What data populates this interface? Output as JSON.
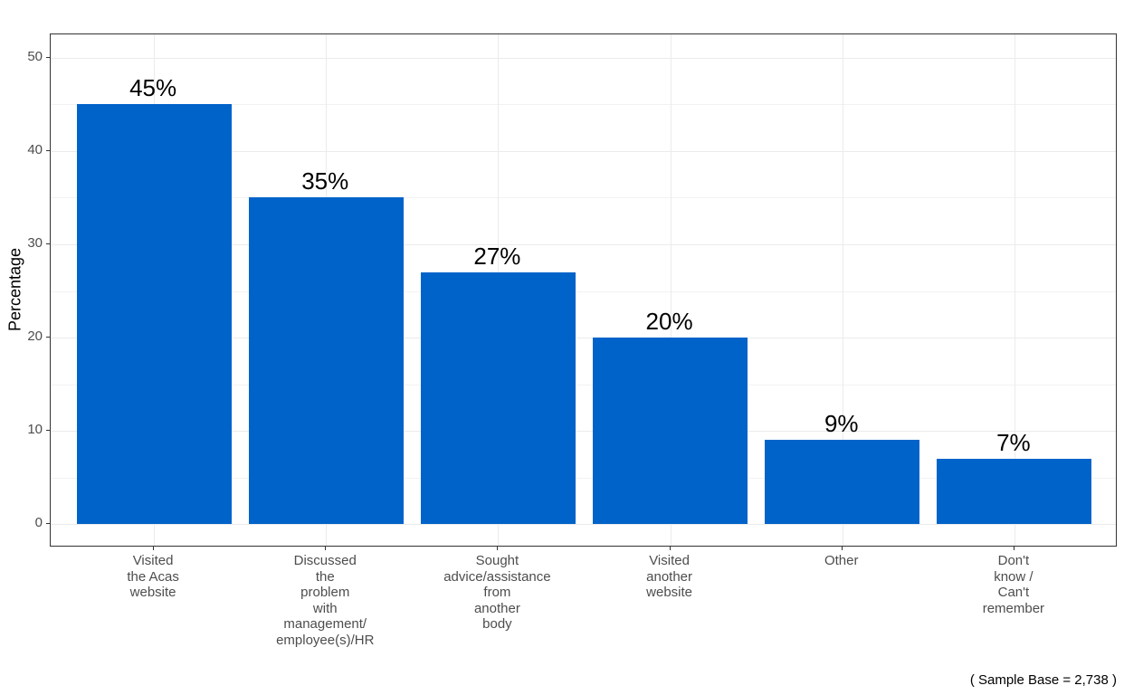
{
  "chart_data": {
    "type": "bar",
    "title": "",
    "xlabel": "",
    "ylabel": "Percentage",
    "ylim": [
      -2.5,
      52.5
    ],
    "yticks": [
      0,
      10,
      20,
      30,
      40,
      50
    ],
    "grid": true,
    "legend": null,
    "bar_color": "#0063C9",
    "categories": [
      "Visited\nthe Acas\nwebsite",
      "Discussed\nthe\nproblem\nwith\nmanagement/\nemployee(s)/HR",
      "Sought\nadvice/assistance\nfrom\nanother\nbody",
      "Visited\nanother\nwebsite",
      "Other",
      "Don't\nknow /\nCan't\nremember"
    ],
    "values": [
      45,
      35,
      27,
      20,
      9,
      7
    ],
    "data_labels": [
      "45%",
      "35%",
      "27%",
      "20%",
      "9%",
      "7%"
    ],
    "annotations": [
      "( Sample Base =  2,738 )"
    ]
  },
  "axes": {
    "ylabel": "Percentage",
    "yticks": [
      "0",
      "10",
      "20",
      "30",
      "40",
      "50"
    ]
  },
  "caption": "( Sample Base =  2,738 )"
}
